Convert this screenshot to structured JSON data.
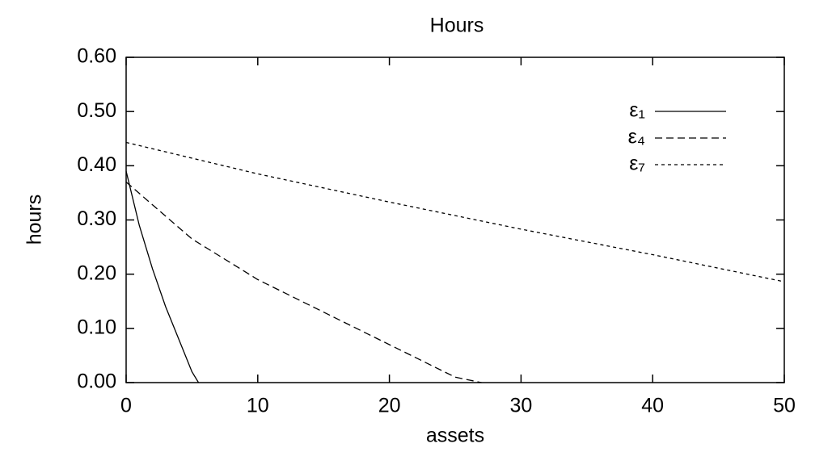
{
  "chart_data": {
    "type": "line",
    "title": "Hours",
    "x_label": "assets",
    "y_label": "hours",
    "xlim": [
      0,
      50
    ],
    "xticks": [
      0,
      10,
      20,
      30,
      40,
      50
    ],
    "ylim": [
      0,
      0.6
    ],
    "yticks": [
      {
        "value": 0,
        "label": "0.00"
      },
      {
        "value": 0.1,
        "label": "0.10"
      },
      {
        "value": 0.2,
        "label": "0.20"
      },
      {
        "value": 0.3,
        "label": "0.30"
      },
      {
        "value": 0.4,
        "label": "0.40"
      },
      {
        "value": 0.5,
        "label": "0.50"
      },
      {
        "value": 0.6,
        "label": "0.60"
      }
    ],
    "legend": "upper right",
    "series": [
      {
        "name": "ε₁",
        "color": "#000000",
        "dash": "solid",
        "x": [
          0,
          1,
          2,
          3,
          4,
          5,
          5.5
        ],
        "values": [
          0.39,
          0.29,
          0.21,
          0.14,
          0.08,
          0.02,
          0
        ]
      },
      {
        "name": "ε₄",
        "color": "#000000",
        "dash": "long",
        "x": [
          0,
          5,
          10,
          15,
          20,
          25,
          27
        ],
        "values": [
          0.37,
          0.265,
          0.19,
          0.13,
          0.07,
          0.01,
          0
        ]
      },
      {
        "name": "ε₇",
        "color": "#000000",
        "dash": "short",
        "x": [
          0,
          10,
          20,
          30,
          40,
          50
        ],
        "values": [
          0.443,
          0.385,
          0.333,
          0.283,
          0.236,
          0.186
        ]
      }
    ]
  }
}
